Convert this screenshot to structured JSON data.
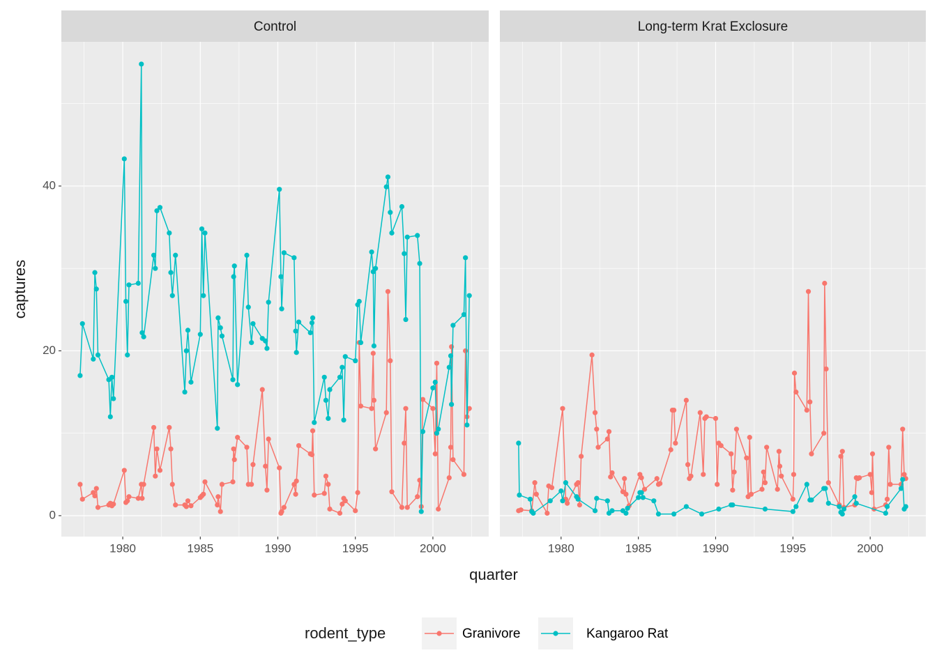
{
  "chart_data": {
    "type": "line",
    "x_label": "quarter",
    "y_label": "captures",
    "legend_title": "rodent_type",
    "xlim": [
      1976.04,
      2003.6
    ],
    "ylim": [
      -2.54,
      57.5
    ],
    "xticks": [
      1980,
      1985,
      1990,
      1995,
      2000
    ],
    "yticks": [
      0,
      20,
      40
    ],
    "grid": true,
    "series": [
      {
        "name": "Granivore",
        "color": "#f8766d"
      },
      {
        "name": "Kangaroo Rat",
        "color": "#00bfc4"
      }
    ],
    "panels": [
      {
        "title": "Control",
        "series": [
          {
            "x": [
              1977.25,
              1977.4,
              1978.1,
              1978.2,
              1978.3,
              1978.4,
              1979.1,
              1979.2,
              1979.3,
              1979.4,
              1980.1,
              1980.2,
              1980.3,
              1980.4,
              1981.0,
              1981.2,
              1981.25,
              1981.35,
              1982.0,
              1982.1,
              1982.2,
              1982.4,
              1983.0,
              1983.1,
              1983.2,
              1983.4,
              1984.0,
              1984.1,
              1984.2,
              1984.4,
              1985.0,
              1985.1,
              1985.2,
              1985.3,
              1986.1,
              1986.15,
              1986.3,
              1986.4,
              1987.1,
              1987.15,
              1987.2,
              1987.4,
              1988.0,
              1988.1,
              1988.3,
              1988.4,
              1989.0,
              1989.2,
              1989.3,
              1989.4,
              1990.1,
              1990.2,
              1990.25,
              1990.4,
              1991.05,
              1991.15,
              1991.2,
              1991.35,
              1992.1,
              1992.2,
              1992.25,
              1992.35,
              1993.0,
              1993.1,
              1993.25,
              1993.35,
              1994.0,
              1994.15,
              1994.25,
              1994.35,
              1995.0,
              1995.15,
              1995.25,
              1995.35,
              1996.05,
              1996.15,
              1996.2,
              1996.3,
              1997.0,
              1997.1,
              1997.25,
              1997.35,
              1998.0,
              1998.15,
              1998.25,
              1998.35,
              1999.0,
              1999.15,
              1999.25,
              1999.35,
              2000.0,
              2000.15,
              2000.25,
              2000.35,
              2001.05,
              2001.15,
              2001.2,
              2001.3,
              2002.0,
              2002.1,
              2002.2,
              2002.35
            ],
            "values": [
              3.8,
              2,
              2.8,
              2.4,
              3.3,
              1,
              1.3,
              1.5,
              1.2,
              1.4,
              5.5,
              1.6,
              1.8,
              2.3,
              2.1,
              3.8,
              2.1,
              3.8,
              10.7,
              4.8,
              8.1,
              5.5,
              10.7,
              8.1,
              3.8,
              1.3,
              1.3,
              1.1,
              1.8,
              1.2,
              2.2,
              2.4,
              2.6,
              4.1,
              1.3,
              2.3,
              0.5,
              3.8,
              4.1,
              8.1,
              6.8,
              9.5,
              8.3,
              3.8,
              3.8,
              6.2,
              15.3,
              6,
              3.1,
              9.3,
              5.8,
              0.3,
              0.5,
              1,
              3.8,
              2.6,
              4.2,
              8.5,
              7.5,
              7.4,
              10.3,
              2.5,
              2.7,
              4.8,
              3.8,
              0.8,
              0.3,
              1.4,
              2.1,
              1.8,
              0.6,
              2.8,
              21,
              13.3,
              13,
              19.7,
              14,
              8.1,
              12.5,
              27.2,
              18.8,
              2.9,
              1,
              8.8,
              13,
              1,
              2.3,
              4.3,
              1.1,
              14.1,
              13,
              7.5,
              18.5,
              0.8,
              4.6,
              8.3,
              20.5,
              6.8,
              5,
              20,
              12,
              13
            ]
          },
          {
            "x": [
              1977.25,
              1977.4,
              1978.1,
              1978.2,
              1978.3,
              1978.4,
              1979.1,
              1979.2,
              1979.3,
              1979.4,
              1980.1,
              1980.2,
              1980.3,
              1980.4,
              1981.0,
              1981.2,
              1981.25,
              1981.35,
              1982.0,
              1982.1,
              1982.2,
              1982.4,
              1983.0,
              1983.1,
              1983.2,
              1983.4,
              1984.0,
              1984.1,
              1984.2,
              1984.4,
              1985.0,
              1985.1,
              1985.2,
              1985.3,
              1986.1,
              1986.15,
              1986.3,
              1986.4,
              1987.1,
              1987.15,
              1987.2,
              1987.4,
              1988.0,
              1988.1,
              1988.3,
              1988.4,
              1989.0,
              1989.2,
              1989.3,
              1989.4,
              1990.1,
              1990.2,
              1990.25,
              1990.4,
              1991.05,
              1991.15,
              1991.2,
              1991.35,
              1992.1,
              1992.2,
              1992.25,
              1992.35,
              1993.0,
              1993.1,
              1993.25,
              1993.35,
              1994.0,
              1994.15,
              1994.25,
              1994.35,
              1995.0,
              1995.15,
              1995.25,
              1995.35,
              1996.05,
              1996.15,
              1996.2,
              1996.3,
              1997.0,
              1997.1,
              1997.25,
              1997.35,
              1998.0,
              1998.15,
              1998.25,
              1998.35,
              1999.0,
              1999.15,
              1999.25,
              1999.35,
              2000.0,
              2000.15,
              2000.25,
              2000.35,
              2001.05,
              2001.15,
              2001.2,
              2001.3,
              2002.0,
              2002.1,
              2002.2,
              2002.35
            ],
            "values": [
              17,
              23.3,
              19,
              29.5,
              27.5,
              19.5,
              16.5,
              12,
              16.8,
              14.2,
              43.3,
              26,
              19.5,
              28,
              28.2,
              54.8,
              22.2,
              21.7,
              31.6,
              30,
              37,
              37.4,
              34.3,
              29.5,
              26.7,
              31.6,
              15,
              20,
              22.5,
              16.2,
              22,
              34.8,
              26.7,
              34.3,
              10.6,
              24,
              22.8,
              21.8,
              16.5,
              29,
              30.3,
              15.9,
              31.6,
              25.3,
              21,
              23.3,
              21.5,
              21.2,
              20.3,
              25.9,
              39.6,
              29,
              25.1,
              31.9,
              31.3,
              22.4,
              19.8,
              23.5,
              22.2,
              23.4,
              24,
              11.3,
              16.8,
              14,
              11.8,
              15.3,
              16.8,
              18,
              11.6,
              19.3,
              18.8,
              25.6,
              26,
              21,
              32,
              29.6,
              20.6,
              30,
              39.9,
              41.1,
              36.8,
              34.3,
              37.5,
              31.8,
              23.8,
              33.8,
              34,
              30.6,
              0.5,
              10.2,
              15.5,
              16.2,
              10,
              10.5,
              18,
              19.4,
              13.5,
              23.1,
              24.4,
              31.3,
              11,
              26.7
            ]
          }
        ]
      },
      {
        "title": "Long-term Krat Exclosure",
        "series": [
          {
            "x": [
              1977.25,
              1977.4,
              1978.1,
              1978.3,
              1978.4,
              1979.1,
              1979.2,
              1979.4,
              1980.1,
              1980.3,
              1980.4,
              1981.0,
              1981.1,
              1981.2,
              1981.3,
              1982.0,
              1982.2,
              1982.3,
              1982.4,
              1983.0,
              1983.1,
              1983.2,
              1983.3,
              1984.0,
              1984.1,
              1984.2,
              1984.4,
              1985.1,
              1985.2,
              1985.4,
              1986.2,
              1986.3,
              1986.4,
              1987.1,
              1987.2,
              1987.3,
              1987.4,
              1988.1,
              1988.2,
              1988.3,
              1988.4,
              1989.0,
              1989.2,
              1989.3,
              1989.4,
              1990.0,
              1990.1,
              1990.2,
              1990.35,
              1991.0,
              1991.1,
              1991.2,
              1991.35,
              1992.0,
              1992.1,
              1992.2,
              1992.3,
              1993.0,
              1993.1,
              1993.2,
              1993.3,
              1994.0,
              1994.1,
              1994.15,
              1994.25,
              1995.0,
              1995.05,
              1995.1,
              1995.2,
              1995.9,
              1996.0,
              1996.1,
              1996.2,
              1997.0,
              1997.05,
              1997.15,
              1997.3,
              1998.0,
              1998.1,
              1998.2,
              1998.3,
              1999.0,
              1999.1,
              1999.2,
              1999.3,
              2000.0,
              2000.1,
              2000.15,
              2000.25,
              2001.0,
              2001.1,
              2001.2,
              2001.3,
              2002.0,
              2002.1,
              2002.2,
              2002.3
            ],
            "values": [
              0.6,
              0.7,
              0.6,
              4,
              2.6,
              0.3,
              3.6,
              3.4,
              13,
              2,
              1.5,
              3.8,
              4,
              1.3,
              7.2,
              19.5,
              12.5,
              10.5,
              8.3,
              9.3,
              10.2,
              4.7,
              5.2,
              2.9,
              4.5,
              2.6,
              1.2,
              5,
              4.6,
              3.2,
              4.5,
              3.8,
              3.9,
              8,
              12.8,
              12.8,
              8.8,
              14,
              6.2,
              4.5,
              4.8,
              12.5,
              5,
              11.8,
              12,
              11.8,
              3.8,
              8.8,
              8.5,
              7.5,
              3.1,
              5.3,
              10.5,
              7,
              2.3,
              9.5,
              2.6,
              3.2,
              5.3,
              4,
              8.3,
              3.2,
              7.8,
              6,
              4.8,
              2,
              5,
              17.3,
              15,
              12.8,
              27.2,
              13.8,
              7.5,
              10,
              28.2,
              17.8,
              4,
              1.3,
              7.2,
              7.8,
              1,
              1.3,
              4.6,
              4.5,
              4.6,
              5,
              2.8,
              7.5,
              0.8,
              1.3,
              2,
              8.3,
              3.8,
              3.8,
              10.5,
              5,
              4.5
            ]
          },
          {
            "x": [
              1977.25,
              1977.3,
              1978.0,
              1978.1,
              1978.2,
              1979.3,
              1980.0,
              1980.1,
              1980.3,
              1981.0,
              1981.1,
              1982.2,
              1982.3,
              1983.0,
              1983.1,
              1983.3,
              1984.0,
              1984.2,
              1984.3,
              1985.0,
              1985.1,
              1985.2,
              1985.3,
              1986.0,
              1986.3,
              1987.3,
              1988.1,
              1989.1,
              1990.2,
              1991.0,
              1991.1,
              1993.2,
              1995.0,
              1995.2,
              1995.9,
              1996.1,
              1996.2,
              1997.0,
              1997.1,
              1997.3,
              1998.0,
              1998.1,
              1998.2,
              1998.3,
              1999.0,
              1999.1,
              2001.0,
              2001.1,
              2002.0,
              2002.1,
              2002.2,
              2002.3
            ],
            "values": [
              8.8,
              2.5,
              2,
              0.5,
              0.3,
              1.8,
              3,
              1.8,
              4,
              2.3,
              2,
              0.6,
              2.1,
              1.8,
              0.3,
              0.6,
              0.6,
              0.3,
              0.9,
              2.2,
              2.8,
              2.8,
              2.2,
              1.8,
              0.2,
              0.2,
              1.1,
              0.2,
              0.8,
              1.3,
              1.3,
              0.8,
              0.5,
              1.1,
              3.8,
              1.9,
              1.9,
              3.3,
              3.3,
              1.5,
              1.1,
              0.4,
              0.2,
              0.8,
              2.3,
              1.5,
              0.3,
              1.1,
              3.3,
              4.4,
              0.8,
              1.1
            ]
          }
        ]
      }
    ]
  }
}
